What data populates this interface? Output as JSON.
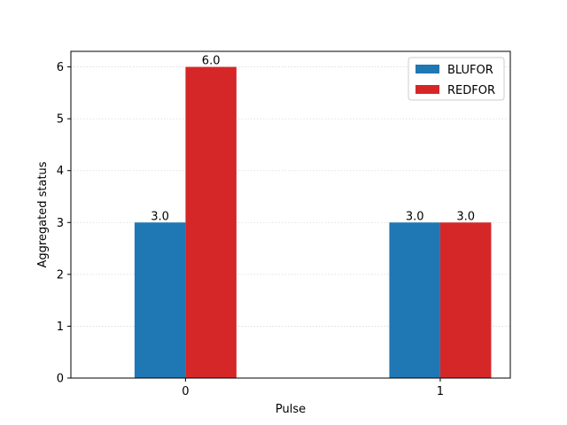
{
  "chart_data": {
    "type": "bar",
    "categories": [
      "0",
      "1"
    ],
    "series": [
      {
        "name": "BLUFOR",
        "values": [
          3.0,
          3.0
        ],
        "color": "#1f77b4"
      },
      {
        "name": "REDFOR",
        "values": [
          6.0,
          3.0
        ],
        "color": "#d62728"
      }
    ],
    "data_labels": [
      [
        "3.0",
        "3.0"
      ],
      [
        "6.0",
        "3.0"
      ]
    ],
    "xlabel": "Pulse",
    "ylabel": "Aggregated status",
    "ylim": [
      0,
      6.3
    ],
    "yticks": [
      "0",
      "1",
      "2",
      "3",
      "4",
      "5",
      "6"
    ],
    "grid": "y-dotted",
    "legend_position": "top-right"
  }
}
